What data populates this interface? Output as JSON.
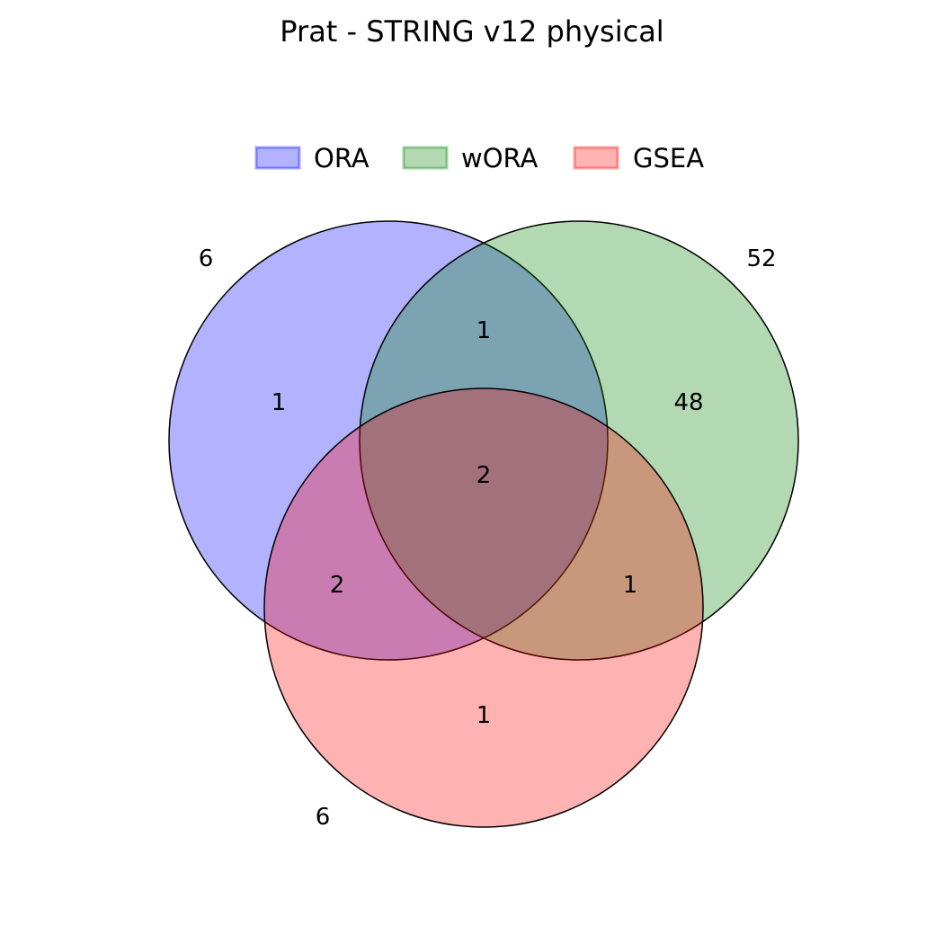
{
  "chart_data": {
    "type": "venn",
    "title": "Prat - STRING v12 physical",
    "sets": [
      {
        "key": "A",
        "name": "ORA",
        "total": "6",
        "color": "#0000ff",
        "fill_opacity": 0.3
      },
      {
        "key": "B",
        "name": "wORA",
        "total": "52",
        "color": "#008000",
        "fill_opacity": 0.3
      },
      {
        "key": "C",
        "name": "GSEA",
        "total": "6",
        "color": "#ff0000",
        "fill_opacity": 0.3
      }
    ],
    "regions": {
      "A_only": "1",
      "B_only": "48",
      "C_only": "1",
      "AB_only": "1",
      "AC_only": "2",
      "BC_only": "1",
      "ABC": "2"
    },
    "legend_position": "top-center"
  }
}
